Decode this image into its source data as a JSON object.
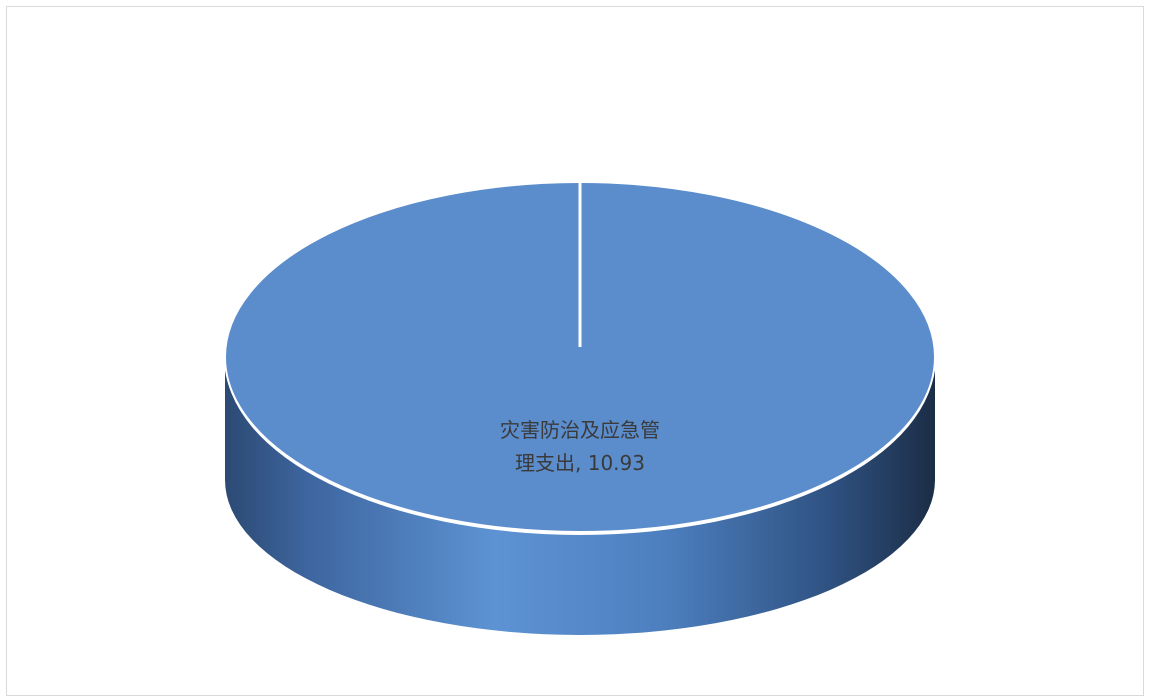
{
  "chart_data": {
    "type": "pie",
    "style": "3d",
    "title": "",
    "categories": [
      "灾害防治及应急管理支出"
    ],
    "values": [
      10.93
    ],
    "label_line1": "灾害防治及应急管",
    "label_line2": "理支出, 10.93",
    "colors": {
      "top": "#5b8ccc",
      "side_light": "#5d93d3",
      "side_dark": "#1e3350",
      "border": "#ffffff"
    }
  }
}
